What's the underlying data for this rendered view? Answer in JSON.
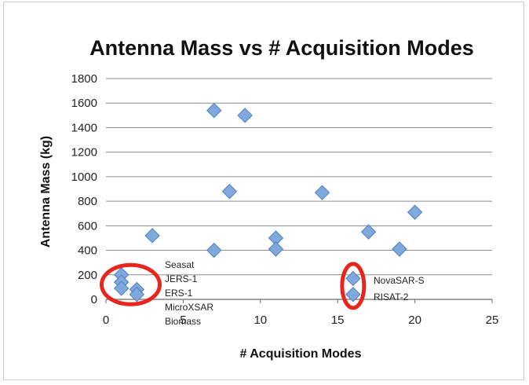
{
  "chart_data": {
    "type": "scatter",
    "title": "Antenna Mass vs # Acquisition Modes",
    "xlabel": "# Acquisition Modes",
    "ylabel": "Antenna Mass (kg)",
    "xlim": [
      0,
      25
    ],
    "ylim": [
      0,
      1800
    ],
    "xticks": [
      0,
      5,
      10,
      15,
      20,
      25
    ],
    "yticks": [
      0,
      200,
      400,
      600,
      800,
      1000,
      1200,
      1400,
      1600,
      1800
    ],
    "grid": "horizontal",
    "legend": "none",
    "marker_color": "#7fa9dd",
    "marker_edge_color": "#4f7fbd",
    "highlight_color": "#e8251c",
    "points": [
      {
        "x": 1,
        "y": 200
      },
      {
        "x": 1,
        "y": 140
      },
      {
        "x": 1,
        "y": 90
      },
      {
        "x": 2,
        "y": 80
      },
      {
        "x": 2,
        "y": 40
      },
      {
        "x": 3,
        "y": 520
      },
      {
        "x": 7,
        "y": 1540
      },
      {
        "x": 7,
        "y": 400
      },
      {
        "x": 8,
        "y": 880
      },
      {
        "x": 9,
        "y": 1500
      },
      {
        "x": 11,
        "y": 500
      },
      {
        "x": 11,
        "y": 410
      },
      {
        "x": 14,
        "y": 870
      },
      {
        "x": 16,
        "y": 170
      },
      {
        "x": 16,
        "y": 40
      },
      {
        "x": 17,
        "y": 550
      },
      {
        "x": 19,
        "y": 410
      },
      {
        "x": 20,
        "y": 710
      }
    ],
    "annotations": {
      "left_group": [
        "Seasat",
        "JERS-1",
        "ERS-1",
        "MicroXSAR",
        "Biomass"
      ],
      "right_group": [
        "NovaSAR-S",
        "RISAT-2"
      ]
    }
  }
}
